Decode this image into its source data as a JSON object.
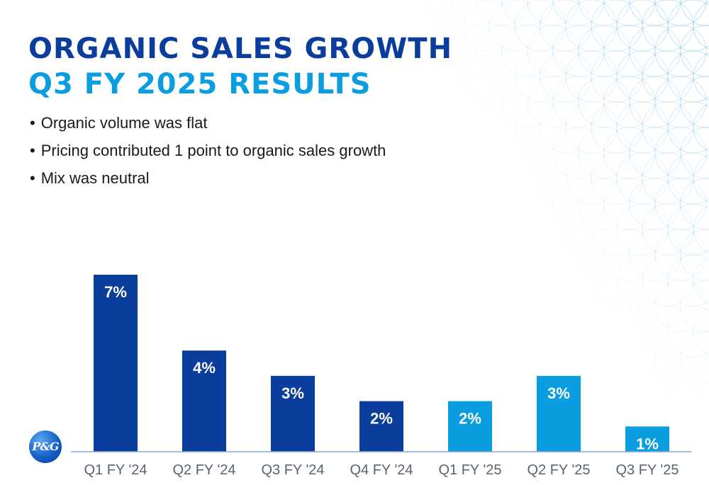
{
  "header": {
    "title_line1": "ORGANIC SALES GROWTH",
    "title_line2": "Q3 FY 2025 RESULTS"
  },
  "bullets": [
    "Organic volume was flat",
    "Pricing contributed 1 point to organic sales growth",
    "Mix was neutral"
  ],
  "logo": {
    "text": "P&G"
  },
  "colors": {
    "fy24_bar": "#0a3d9c",
    "fy25_bar": "#0a9ee0",
    "baseline": "#8aa4d6",
    "tick_label": "#5a6470",
    "data_label": "#ffffff"
  },
  "chart_data": {
    "type": "bar",
    "categories": [
      "Q1 FY '24",
      "Q2 FY '24",
      "Q3 FY '24",
      "Q4 FY '24",
      "Q1 FY '25",
      "Q2 FY '25",
      "Q3 FY '25"
    ],
    "values": [
      7,
      4,
      3,
      2,
      2,
      3,
      1
    ],
    "data_labels": [
      "7%",
      "4%",
      "3%",
      "2%",
      "2%",
      "3%",
      "1%"
    ],
    "bar_color_groups": [
      "fy24",
      "fy24",
      "fy24",
      "fy24",
      "fy25",
      "fy25",
      "fy25"
    ],
    "title": "",
    "xlabel": "",
    "ylabel": "",
    "ylim": [
      0,
      7
    ],
    "grid": false,
    "legend": "none"
  }
}
